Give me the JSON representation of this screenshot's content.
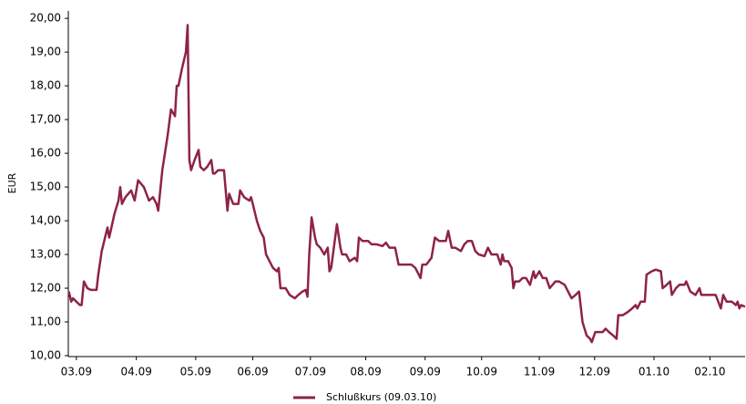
{
  "chart_data": {
    "type": "line",
    "y_label": "EUR",
    "x": [
      -0.13,
      -0.09,
      -0.06,
      0,
      0.06,
      0.09,
      0.13,
      0.19,
      0.25,
      0.35,
      0.38,
      0.44,
      0.54,
      0.57,
      0.66,
      0.73,
      0.76,
      0.79,
      0.85,
      0.95,
      1.01,
      1.07,
      1.17,
      1.26,
      1.33,
      1.39,
      1.42,
      1.49,
      1.58,
      1.64,
      1.71,
      1.74,
      1.77,
      1.83,
      1.9,
      1.93,
      1.96,
      1.99,
      2.05,
      2.12,
      2.15,
      2.21,
      2.27,
      2.34,
      2.37,
      2.4,
      2.46,
      2.56,
      2.62,
      2.65,
      2.72,
      2.81,
      2.84,
      2.91,
      3.0,
      3.03,
      3.06,
      3.13,
      3.19,
      3.25,
      3.29,
      3.35,
      3.41,
      3.48,
      3.51,
      3.54,
      3.63,
      3.7,
      3.79,
      3.85,
      3.92,
      3.98,
      4.01,
      4.04,
      4.08,
      4.14,
      4.17,
      4.23,
      4.3,
      4.36,
      4.39,
      4.42,
      4.52,
      4.58,
      4.61,
      4.68,
      4.74,
      4.83,
      4.87,
      4.9,
      4.96,
      5.06,
      5.12,
      5.21,
      5.31,
      5.37,
      5.43,
      5.53,
      5.59,
      5.69,
      5.81,
      5.88,
      5.94,
      5.97,
      6.0,
      6.07,
      6.16,
      6.22,
      6.29,
      6.35,
      6.41,
      6.45,
      6.51,
      6.57,
      6.67,
      6.73,
      6.79,
      6.86,
      6.92,
      6.98,
      7.08,
      7.14,
      7.2,
      7.3,
      7.36,
      7.39,
      7.42,
      7.49,
      7.55,
      7.58,
      7.61,
      7.68,
      7.74,
      7.8,
      7.87,
      7.93,
      7.96,
      8.03,
      8.09,
      8.15,
      8.21,
      8.31,
      8.37,
      8.47,
      8.53,
      8.59,
      8.66,
      8.72,
      8.78,
      8.85,
      8.91,
      8.94,
      9.0,
      9.13,
      9.18,
      9.24,
      9.31,
      9.37,
      9.4,
      9.48,
      9.57,
      9.64,
      9.7,
      9.73,
      9.79,
      9.86,
      9.89,
      9.98,
      10.05,
      10.14,
      10.17,
      10.24,
      10.3,
      10.33,
      10.4,
      10.46,
      10.55,
      10.58,
      10.65,
      10.74,
      10.81,
      10.84,
      10.93,
      11.09,
      11.18,
      11.22,
      11.28,
      11.37,
      11.44,
      11.47,
      11.5,
      11.53,
      11.6
    ],
    "series": [
      {
        "name": "Schlußkurs (09.03.10)",
        "color": "#8e2346",
        "values": [
          11.9,
          11.6,
          11.7,
          11.6,
          11.5,
          11.5,
          12.2,
          12.0,
          11.95,
          11.95,
          12.4,
          13.1,
          13.8,
          13.5,
          14.2,
          14.6,
          15.0,
          14.5,
          14.7,
          14.9,
          14.6,
          15.2,
          15.0,
          14.6,
          14.7,
          14.5,
          14.3,
          15.5,
          16.5,
          17.3,
          17.1,
          18.0,
          18.0,
          18.5,
          19.0,
          19.8,
          15.8,
          15.5,
          15.8,
          16.1,
          15.6,
          15.5,
          15.6,
          15.8,
          15.4,
          15.4,
          15.5,
          15.5,
          14.3,
          14.8,
          14.5,
          14.5,
          14.9,
          14.7,
          14.6,
          14.7,
          14.5,
          14.0,
          13.7,
          13.5,
          13.0,
          12.8,
          12.6,
          12.5,
          12.6,
          12.0,
          12.0,
          11.8,
          11.7,
          11.8,
          11.9,
          11.95,
          11.75,
          13.0,
          14.1,
          13.5,
          13.3,
          13.2,
          13.0,
          13.2,
          12.5,
          12.6,
          13.9,
          13.2,
          13.0,
          13.0,
          12.8,
          12.9,
          12.8,
          13.5,
          13.4,
          13.4,
          13.3,
          13.3,
          13.25,
          13.35,
          13.2,
          13.2,
          12.7,
          12.7,
          12.7,
          12.6,
          12.4,
          12.3,
          12.7,
          12.7,
          12.9,
          13.5,
          13.4,
          13.4,
          13.4,
          13.7,
          13.2,
          13.2,
          13.1,
          13.3,
          13.4,
          13.4,
          13.1,
          13.0,
          12.95,
          13.2,
          13.0,
          13.0,
          12.7,
          13.0,
          12.8,
          12.8,
          12.6,
          12.0,
          12.2,
          12.2,
          12.3,
          12.3,
          12.1,
          12.5,
          12.3,
          12.5,
          12.3,
          12.3,
          12.0,
          12.2,
          12.2,
          12.1,
          11.9,
          11.7,
          11.8,
          11.9,
          11.0,
          10.6,
          10.5,
          10.4,
          10.7,
          10.7,
          10.8,
          10.7,
          10.6,
          10.5,
          11.2,
          11.2,
          11.3,
          11.4,
          11.5,
          11.4,
          11.6,
          11.6,
          12.4,
          12.5,
          12.55,
          12.5,
          12.0,
          12.1,
          12.2,
          11.8,
          12.0,
          12.1,
          12.1,
          12.2,
          11.9,
          11.8,
          12.0,
          11.8,
          11.8,
          11.8,
          11.4,
          11.8,
          11.6,
          11.6,
          11.5,
          11.6,
          11.4,
          11.5,
          11.45
        ]
      }
    ],
    "xlim": [
      -0.14,
      11.6
    ],
    "xticks": [
      {
        "value": 0,
        "label": "03.09"
      },
      {
        "value": 1.04,
        "label": "04.09"
      },
      {
        "value": 2.07,
        "label": "05.09"
      },
      {
        "value": 3.06,
        "label": "06.09"
      },
      {
        "value": 4.06,
        "label": "07.09"
      },
      {
        "value": 5.02,
        "label": "08.09"
      },
      {
        "value": 6.05,
        "label": "09.09"
      },
      {
        "value": 7.03,
        "label": "10.09"
      },
      {
        "value": 8.03,
        "label": "11.09"
      },
      {
        "value": 8.99,
        "label": "12.09"
      },
      {
        "value": 10.02,
        "label": "01.10"
      },
      {
        "value": 10.99,
        "label": "02.10"
      }
    ],
    "ylim": [
      10,
      20.22
    ],
    "yticks": [
      {
        "value": 10,
        "label": "10,00"
      },
      {
        "value": 11,
        "label": "11,00"
      },
      {
        "value": 12,
        "label": "12,00"
      },
      {
        "value": 13,
        "label": "13,00"
      },
      {
        "value": 14,
        "label": "14,00"
      },
      {
        "value": 15,
        "label": "15,00"
      },
      {
        "value": 16,
        "label": "16,00"
      },
      {
        "value": 17,
        "label": "17,00"
      },
      {
        "value": 18,
        "label": "18,00"
      },
      {
        "value": 19,
        "label": "19,00"
      },
      {
        "value": 20,
        "label": "20,00"
      }
    ],
    "grid": false
  }
}
